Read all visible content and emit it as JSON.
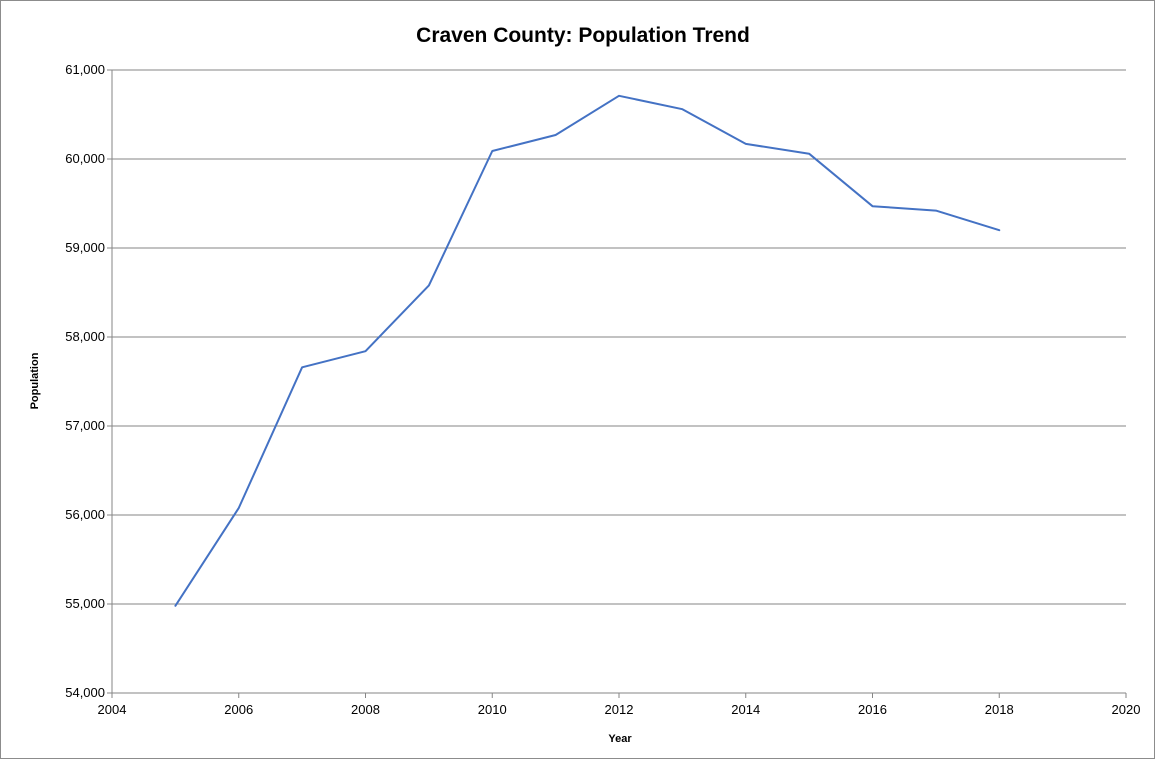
{
  "chart_data": {
    "type": "line",
    "title": "Craven County: Population Trend",
    "xlabel": "Year",
    "ylabel": "Population",
    "xlim": [
      2004,
      2020
    ],
    "ylim": [
      54000,
      61000
    ],
    "x_ticks": [
      2004,
      2006,
      2008,
      2010,
      2012,
      2014,
      2016,
      2018,
      2020
    ],
    "y_ticks": [
      54000,
      55000,
      56000,
      57000,
      58000,
      59000,
      60000,
      61000
    ],
    "y_tick_labels": [
      "54,000",
      "55,000",
      "56,000",
      "57,000",
      "58,000",
      "59,000",
      "60,000",
      "61,000"
    ],
    "grid": "horizontal",
    "legend": "none",
    "series": [
      {
        "color": "#4472c4",
        "x": [
          2005,
          2006,
          2007,
          2008,
          2009,
          2010,
          2011,
          2012,
          2013,
          2014,
          2015,
          2016,
          2017,
          2018
        ],
        "y": [
          54980,
          56080,
          57660,
          57840,
          58580,
          60090,
          60270,
          60710,
          60560,
          60170,
          60060,
          59470,
          59420,
          59200
        ]
      }
    ]
  }
}
